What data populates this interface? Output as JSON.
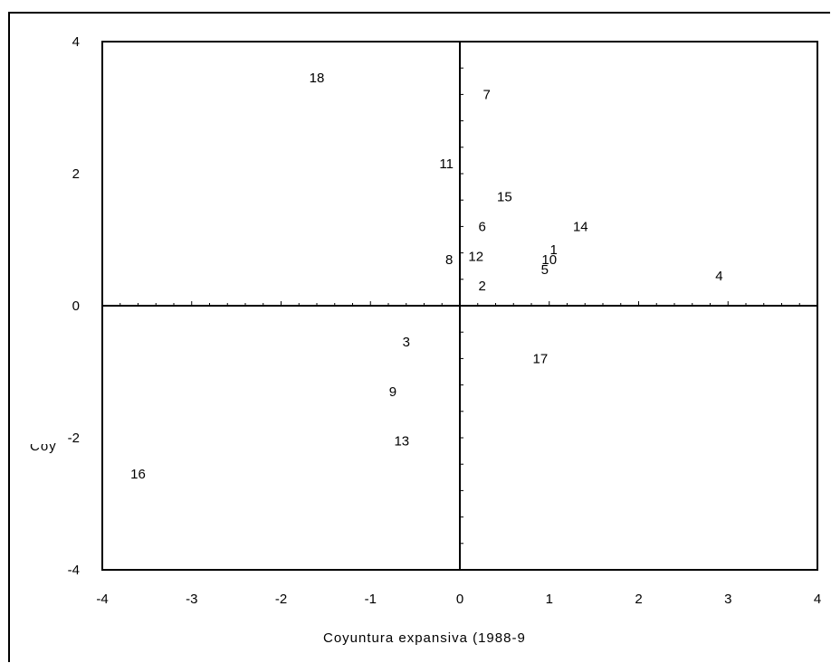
{
  "chart_data": {
    "type": "scatter",
    "xlabel": "Coyuntura expansiva (1988-9",
    "ylabel": "Coy",
    "xlim": [
      -4,
      4
    ],
    "ylim": [
      -4,
      4
    ],
    "x_ticks": [
      "-4",
      "-3",
      "-2",
      "-1",
      "0",
      "1",
      "2",
      "3",
      "4"
    ],
    "y_ticks": [
      "4",
      "2",
      "0",
      "-2",
      "-4"
    ],
    "grid": false,
    "points": [
      {
        "label": "1",
        "x": 1.05,
        "y": 0.85
      },
      {
        "label": "2",
        "x": 0.25,
        "y": 0.3
      },
      {
        "label": "3",
        "x": -0.6,
        "y": -0.55
      },
      {
        "label": "4",
        "x": 2.9,
        "y": 0.45
      },
      {
        "label": "5",
        "x": 0.95,
        "y": 0.55
      },
      {
        "label": "6",
        "x": 0.25,
        "y": 1.2
      },
      {
        "label": "7",
        "x": 0.3,
        "y": 3.2
      },
      {
        "label": "8",
        "x": -0.12,
        "y": 0.7
      },
      {
        "label": "9",
        "x": -0.75,
        "y": -1.3
      },
      {
        "label": "10",
        "x": 1.0,
        "y": 0.7
      },
      {
        "label": "11",
        "x": -0.15,
        "y": 2.15
      },
      {
        "label": "12",
        "x": 0.18,
        "y": 0.75
      },
      {
        "label": "13",
        "x": -0.65,
        "y": -2.05
      },
      {
        "label": "14",
        "x": 1.35,
        "y": 1.2
      },
      {
        "label": "15",
        "x": 0.5,
        "y": 1.65
      },
      {
        "label": "16",
        "x": -3.6,
        "y": -2.55
      },
      {
        "label": "17",
        "x": 0.9,
        "y": -0.8
      },
      {
        "label": "18",
        "x": -1.6,
        "y": 3.45
      }
    ]
  }
}
